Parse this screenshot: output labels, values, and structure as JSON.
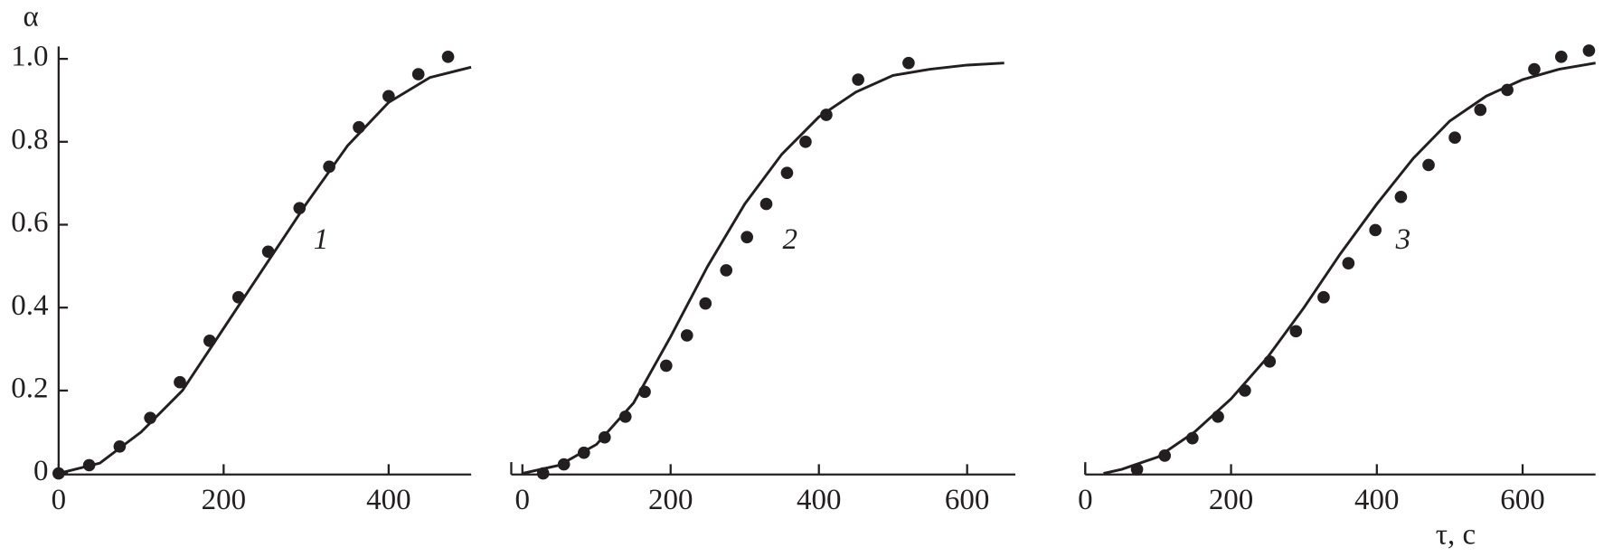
{
  "chart_data": [
    {
      "type": "line",
      "label": "1",
      "ylabel": "α",
      "xlim": [
        0,
        500
      ],
      "xticks": [
        0,
        200,
        400
      ],
      "ylim": [
        0,
        1
      ],
      "yticks": [
        0,
        0.2,
        0.4,
        0.6,
        0.8,
        {
          "value": 1,
          "label": "1.0"
        }
      ],
      "series": [
        {
          "kind": "line",
          "color": "#231f20",
          "x": [
            0,
            50,
            100,
            150,
            200,
            250,
            300,
            350,
            400,
            450,
            500
          ],
          "values": [
            0,
            0.025,
            0.1,
            0.2,
            0.35,
            0.5,
            0.65,
            0.79,
            0.895,
            0.955,
            0.98
          ]
        },
        {
          "kind": "scatter",
          "color": "#231f20",
          "x": [
            0,
            37,
            74,
            111,
            147,
            183,
            218,
            254,
            292,
            328,
            364,
            400,
            436,
            472
          ],
          "values": [
            0,
            0.02,
            0.065,
            0.134,
            0.22,
            0.32,
            0.425,
            0.535,
            0.64,
            0.74,
            0.835,
            0.91,
            0.963,
            1.005
          ]
        }
      ]
    },
    {
      "type": "line",
      "label": "2",
      "xlim": [
        -15,
        665
      ],
      "xticks": [
        0,
        200,
        400,
        600
      ],
      "ylim": [
        0,
        1
      ],
      "series": [
        {
          "kind": "line",
          "color": "#231f20",
          "x": [
            0,
            50,
            100,
            150,
            200,
            250,
            300,
            350,
            400,
            450,
            500,
            550,
            600,
            650
          ],
          "values": [
            0,
            0.02,
            0.07,
            0.17,
            0.33,
            0.5,
            0.65,
            0.77,
            0.86,
            0.92,
            0.96,
            0.975,
            0.985,
            0.99
          ]
        },
        {
          "kind": "scatter",
          "color": "#231f20",
          "x": [
            28,
            56,
            83,
            111,
            139,
            165,
            194,
            222,
            247,
            275,
            303,
            329,
            357,
            382,
            410,
            453,
            521
          ],
          "values": [
            0,
            0.022,
            0.05,
            0.087,
            0.137,
            0.197,
            0.26,
            0.333,
            0.41,
            0.49,
            0.57,
            0.65,
            0.725,
            0.8,
            0.865,
            0.95,
            0.99
          ]
        }
      ]
    },
    {
      "type": "line",
      "label": "3",
      "xlabel": "τ, c",
      "xlim": [
        0,
        700
      ],
      "xticks": [
        0,
        200,
        400,
        600
      ],
      "ylim": [
        0,
        1
      ],
      "series": [
        {
          "kind": "line",
          "color": "#231f20",
          "x": [
            25,
            50,
            100,
            150,
            200,
            250,
            300,
            350,
            400,
            450,
            500,
            550,
            600,
            650,
            700
          ],
          "values": [
            0,
            0.01,
            0.04,
            0.1,
            0.18,
            0.28,
            0.4,
            0.53,
            0.65,
            0.76,
            0.85,
            0.91,
            0.95,
            0.975,
            0.99
          ]
        },
        {
          "kind": "scatter",
          "color": "#231f20",
          "x": [
            71,
            109,
            147,
            182,
            219,
            253,
            289,
            327,
            361,
            398,
            433,
            471,
            507,
            542,
            579,
            616,
            653,
            691
          ],
          "values": [
            0.01,
            0.043,
            0.085,
            0.137,
            0.2,
            0.27,
            0.343,
            0.425,
            0.507,
            0.587,
            0.667,
            0.744,
            0.81,
            0.877,
            0.925,
            0.975,
            1.005,
            1.02
          ]
        }
      ]
    }
  ]
}
